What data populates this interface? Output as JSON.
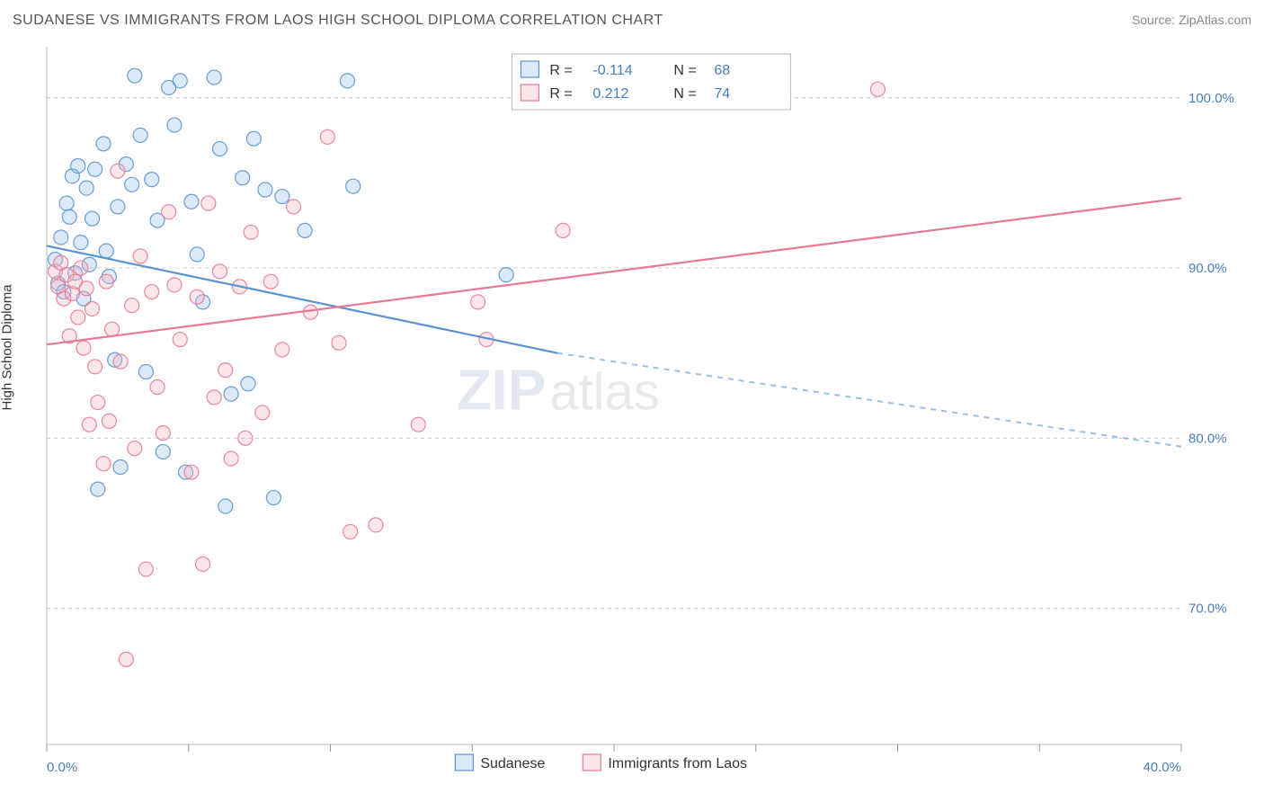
{
  "header": {
    "title": "SUDANESE VS IMMIGRANTS FROM LAOS HIGH SCHOOL DIPLOMA CORRELATION CHART",
    "source": "Source: ZipAtlas.com"
  },
  "yaxis_label": "High School Diploma",
  "watermark": {
    "left": "ZIP",
    "right": "atlas"
  },
  "chart": {
    "type": "scatter",
    "xlim": [
      0,
      40
    ],
    "ylim": [
      62,
      103
    ],
    "x_ticks": [
      0,
      5,
      10,
      15,
      20,
      25,
      30,
      35,
      40
    ],
    "x_tick_labels": {
      "0": "0.0%",
      "40": "40.0%"
    },
    "y_gridlines": [
      70,
      80,
      90,
      100
    ],
    "y_tick_labels": {
      "70": "70.0%",
      "80": "80.0%",
      "90": "90.0%",
      "100": "100.0%"
    },
    "background_color": "#ffffff",
    "grid_color": "#cccccc",
    "border_color": "#bbbbbb",
    "axis_label_color": "#4a7ebb",
    "marker_radius": 8,
    "series": [
      {
        "name": "Sudanese",
        "color_fill": "#9cc1e8",
        "color_stroke": "#5a93d1",
        "r_value": "-0.114",
        "n_value": "68",
        "trend": {
          "x0": 0,
          "y0": 91.3,
          "x1_solid": 18,
          "y1_solid": 85.0,
          "x1_dash": 40,
          "y1_dash": 79.5
        },
        "points": [
          [
            0.3,
            90.5
          ],
          [
            0.4,
            89.1
          ],
          [
            0.5,
            91.8
          ],
          [
            0.6,
            88.6
          ],
          [
            0.7,
            93.8
          ],
          [
            0.8,
            93.0
          ],
          [
            0.9,
            95.4
          ],
          [
            1.0,
            89.7
          ],
          [
            1.1,
            96.0
          ],
          [
            1.2,
            91.5
          ],
          [
            1.3,
            88.2
          ],
          [
            1.4,
            94.7
          ],
          [
            1.5,
            90.2
          ],
          [
            1.6,
            92.9
          ],
          [
            1.7,
            95.8
          ],
          [
            1.8,
            77.0
          ],
          [
            2.0,
            97.3
          ],
          [
            2.1,
            91.0
          ],
          [
            2.2,
            89.5
          ],
          [
            2.4,
            84.6
          ],
          [
            2.5,
            93.6
          ],
          [
            2.6,
            78.3
          ],
          [
            2.8,
            96.1
          ],
          [
            3.0,
            94.9
          ],
          [
            3.1,
            101.3
          ],
          [
            3.3,
            97.8
          ],
          [
            3.5,
            83.9
          ],
          [
            3.7,
            95.2
          ],
          [
            3.9,
            92.8
          ],
          [
            4.1,
            79.2
          ],
          [
            4.3,
            100.6
          ],
          [
            4.5,
            98.4
          ],
          [
            4.7,
            101.0
          ],
          [
            4.9,
            78.0
          ],
          [
            5.1,
            93.9
          ],
          [
            5.3,
            90.8
          ],
          [
            5.5,
            88.0
          ],
          [
            5.9,
            101.2
          ],
          [
            6.1,
            97.0
          ],
          [
            6.3,
            76.0
          ],
          [
            6.5,
            82.6
          ],
          [
            6.9,
            95.3
          ],
          [
            7.1,
            83.2
          ],
          [
            7.3,
            97.6
          ],
          [
            7.7,
            94.6
          ],
          [
            8.0,
            76.5
          ],
          [
            8.3,
            94.2
          ],
          [
            9.1,
            92.2
          ],
          [
            10.6,
            101.0
          ],
          [
            10.8,
            94.8
          ],
          [
            16.2,
            89.6
          ]
        ]
      },
      {
        "name": "Immigrants from Laos",
        "color_fill": "#f3b7c4",
        "color_stroke": "#e77a95",
        "r_value": "0.212",
        "n_value": "74",
        "trend": {
          "x0": 0,
          "y0": 85.5,
          "x1_solid": 40,
          "y1_solid": 94.1
        },
        "points": [
          [
            0.3,
            89.8
          ],
          [
            0.4,
            88.9
          ],
          [
            0.5,
            90.3
          ],
          [
            0.6,
            88.2
          ],
          [
            0.7,
            89.6
          ],
          [
            0.8,
            86.0
          ],
          [
            0.9,
            88.5
          ],
          [
            1.0,
            89.2
          ],
          [
            1.1,
            87.1
          ],
          [
            1.2,
            90.0
          ],
          [
            1.3,
            85.3
          ],
          [
            1.4,
            88.8
          ],
          [
            1.5,
            80.8
          ],
          [
            1.6,
            87.6
          ],
          [
            1.7,
            84.2
          ],
          [
            1.8,
            82.1
          ],
          [
            2.0,
            78.5
          ],
          [
            2.1,
            89.2
          ],
          [
            2.2,
            81.0
          ],
          [
            2.3,
            86.4
          ],
          [
            2.5,
            95.7
          ],
          [
            2.6,
            84.5
          ],
          [
            2.8,
            67.0
          ],
          [
            3.0,
            87.8
          ],
          [
            3.1,
            79.4
          ],
          [
            3.3,
            90.7
          ],
          [
            3.5,
            72.3
          ],
          [
            3.7,
            88.6
          ],
          [
            3.9,
            83.0
          ],
          [
            4.1,
            80.3
          ],
          [
            4.3,
            93.3
          ],
          [
            4.5,
            89.0
          ],
          [
            4.7,
            85.8
          ],
          [
            5.1,
            78.0
          ],
          [
            5.3,
            88.3
          ],
          [
            5.5,
            72.6
          ],
          [
            5.7,
            93.8
          ],
          [
            5.9,
            82.4
          ],
          [
            6.1,
            89.8
          ],
          [
            6.3,
            84.0
          ],
          [
            6.5,
            78.8
          ],
          [
            6.8,
            88.9
          ],
          [
            7.0,
            80.0
          ],
          [
            7.2,
            92.1
          ],
          [
            7.6,
            81.5
          ],
          [
            7.9,
            89.2
          ],
          [
            8.3,
            85.2
          ],
          [
            8.7,
            93.6
          ],
          [
            9.3,
            87.4
          ],
          [
            9.9,
            97.7
          ],
          [
            10.3,
            85.6
          ],
          [
            10.7,
            74.5
          ],
          [
            11.6,
            74.9
          ],
          [
            13.1,
            80.8
          ],
          [
            15.2,
            88.0
          ],
          [
            15.5,
            85.8
          ],
          [
            18.2,
            92.2
          ],
          [
            29.3,
            100.5
          ]
        ]
      }
    ]
  },
  "top_legend": {
    "r_label": "R =",
    "n_label": "N ="
  },
  "bottom_legend": {
    "items": [
      "Sudanese",
      "Immigrants from Laos"
    ]
  }
}
